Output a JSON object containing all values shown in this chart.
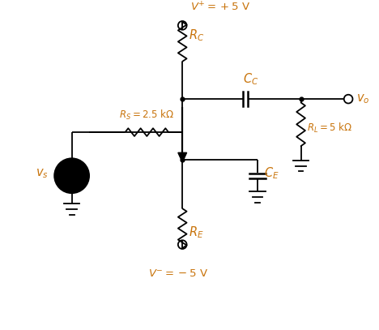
{
  "bg_color": "#ffffff",
  "line_color": "#000000",
  "label_color": "#c8730a",
  "vs_fill": "#f4b8cc",
  "figsize": [
    4.68,
    4.07
  ],
  "dpi": 100
}
